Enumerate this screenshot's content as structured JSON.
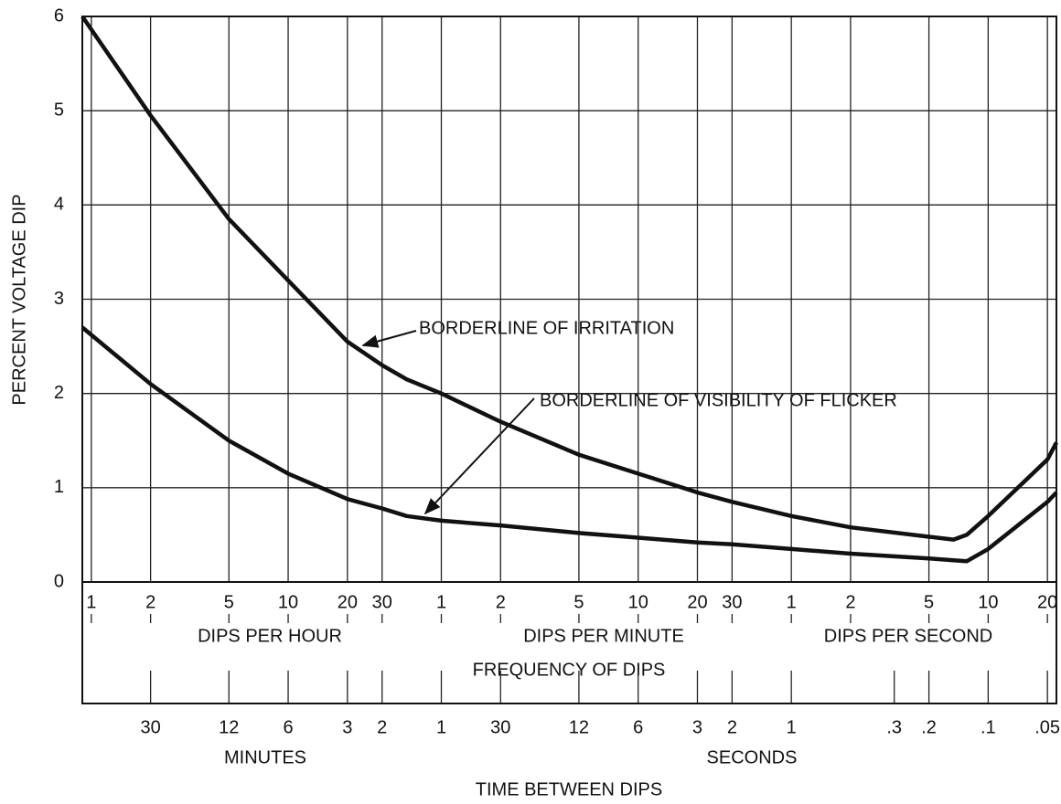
{
  "chart_data": {
    "type": "line",
    "xscale": "log",
    "grid": true,
    "ylabel": "PERCENT VOLTAGE DIP",
    "xlabel": "FREQUENCY OF DIPS",
    "x_group_labels": [
      "DIPS PER HOUR",
      "DIPS PER MINUTE",
      "DIPS PER SECOND"
    ],
    "x2label": "TIME BETWEEN DIPS",
    "x2_group_labels": [
      "MINUTES",
      "SECONDS"
    ],
    "annotations": [
      "BORDERLINE OF IRRITATION",
      "BORDERLINE OF VISIBILITY OF FLICKER"
    ],
    "xlim": [
      0.9,
      80000
    ],
    "ylim": [
      0,
      6
    ],
    "yticks": [
      0,
      1,
      2,
      3,
      4,
      5,
      6
    ],
    "xticks": [
      1,
      2,
      5,
      10,
      20,
      30,
      {
        "value": 60,
        "label": "1"
      },
      {
        "value": 120,
        "label": "2"
      },
      {
        "value": 300,
        "label": "5"
      },
      {
        "value": 600,
        "label": "10"
      },
      {
        "value": 1200,
        "label": "20"
      },
      {
        "value": 1800,
        "label": "30"
      },
      {
        "value": 3600,
        "label": "1"
      },
      {
        "value": 7200,
        "label": "2"
      },
      {
        "value": 18000,
        "label": "5"
      },
      {
        "value": 36000,
        "label": "10"
      },
      {
        "value": 72000,
        "label": "20"
      }
    ],
    "x2ticks": [
      {
        "value": 2,
        "label": "30"
      },
      {
        "value": 5,
        "label": "12"
      },
      {
        "value": 10,
        "label": "6"
      },
      {
        "value": 20,
        "label": "3"
      },
      {
        "value": 30,
        "label": "2"
      },
      {
        "value": 60,
        "label": "1"
      },
      {
        "value": 120,
        "label": "30"
      },
      {
        "value": 300,
        "label": "12"
      },
      {
        "value": 600,
        "label": "6"
      },
      {
        "value": 1200,
        "label": "3"
      },
      {
        "value": 1800,
        "label": "2"
      },
      {
        "value": 3600,
        "label": "1"
      },
      {
        "value": 12000,
        "label": ".3"
      },
      {
        "value": 18000,
        "label": ".2"
      },
      {
        "value": 36000,
        "label": ".1"
      },
      {
        "value": 72000,
        "label": ".05"
      }
    ],
    "x": [
      0.9,
      2,
      5,
      10,
      20,
      30,
      40,
      60,
      120,
      300,
      600,
      1200,
      1800,
      3600,
      7200,
      18000,
      24000,
      28000,
      36000,
      72000,
      80000
    ],
    "series": [
      {
        "name": "BORDERLINE OF IRRITATION",
        "color": "#111111",
        "values": [
          6,
          4.95,
          3.85,
          3.2,
          2.55,
          2.3,
          2.15,
          2.0,
          1.7,
          1.35,
          1.15,
          0.95,
          0.85,
          0.7,
          0.58,
          0.48,
          0.45,
          0.5,
          0.7,
          1.3,
          1.48
        ]
      },
      {
        "name": "BORDERLINE OF VISIBILITY OF FLICKER",
        "color": "#111111",
        "values": [
          2.7,
          2.1,
          1.5,
          1.15,
          0.88,
          0.78,
          0.7,
          0.65,
          0.6,
          0.52,
          0.47,
          0.42,
          0.4,
          0.35,
          0.3,
          0.25,
          0.23,
          0.22,
          0.35,
          0.85,
          0.95
        ]
      }
    ]
  }
}
